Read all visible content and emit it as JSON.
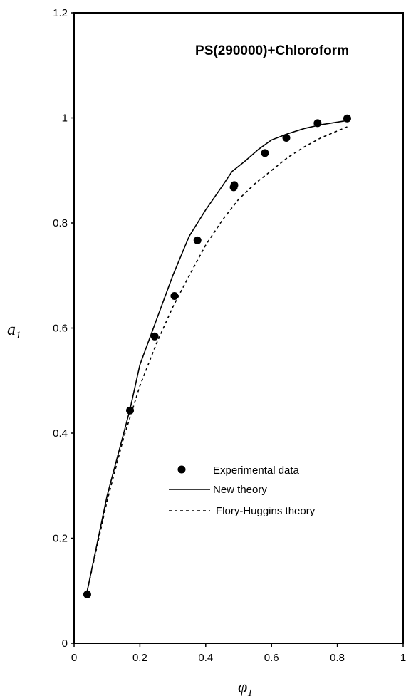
{
  "chart_data": {
    "type": "scatter",
    "title": "PS(290000)+Chloroform",
    "xlabel": {
      "symbol": "φ",
      "subscript": "1"
    },
    "ylabel": {
      "symbol": "a",
      "subscript": "1"
    },
    "xlim": [
      0,
      1
    ],
    "ylim": [
      0,
      1.2
    ],
    "xticks": [
      0,
      0.2,
      0.4,
      0.6,
      0.8,
      1
    ],
    "xtick_labels": [
      "0",
      "0.2",
      "0.4",
      "0.6",
      "0.8",
      "1"
    ],
    "yticks": [
      0,
      0.2,
      0.4,
      0.6,
      0.8,
      1.0,
      1.2
    ],
    "ytick_labels": [
      "0",
      "0.2",
      "0.4",
      "0.6",
      "0.8",
      "1",
      "1.2"
    ],
    "grid": false,
    "legend_position": "lower-center",
    "series": [
      {
        "name": "Experimental data",
        "style": "markers",
        "x": [
          0.04,
          0.17,
          0.245,
          0.305,
          0.375,
          0.485,
          0.487,
          0.58,
          0.645,
          0.74,
          0.83
        ],
        "y": [
          0.093,
          0.443,
          0.584,
          0.661,
          0.767,
          0.868,
          0.872,
          0.933,
          0.962,
          0.99,
          0.999
        ]
      },
      {
        "name": "New theory",
        "style": "solid-line",
        "x": [
          0.04,
          0.1,
          0.17,
          0.2,
          0.25,
          0.3,
          0.35,
          0.4,
          0.45,
          0.48,
          0.52,
          0.56,
          0.6,
          0.65,
          0.7,
          0.75,
          0.8,
          0.83
        ],
        "y": [
          0.1,
          0.28,
          0.445,
          0.53,
          0.615,
          0.7,
          0.775,
          0.825,
          0.87,
          0.898,
          0.918,
          0.94,
          0.958,
          0.97,
          0.98,
          0.987,
          0.992,
          0.995
        ]
      },
      {
        "name": "Flory-Huggins theory",
        "style": "dashed-line",
        "x": [
          0.04,
          0.1,
          0.15,
          0.2,
          0.25,
          0.3,
          0.35,
          0.4,
          0.45,
          0.5,
          0.55,
          0.6,
          0.65,
          0.7,
          0.75,
          0.8,
          0.83
        ],
        "y": [
          0.1,
          0.27,
          0.39,
          0.49,
          0.57,
          0.64,
          0.7,
          0.758,
          0.805,
          0.845,
          0.875,
          0.9,
          0.925,
          0.945,
          0.962,
          0.975,
          0.983
        ]
      }
    ]
  }
}
